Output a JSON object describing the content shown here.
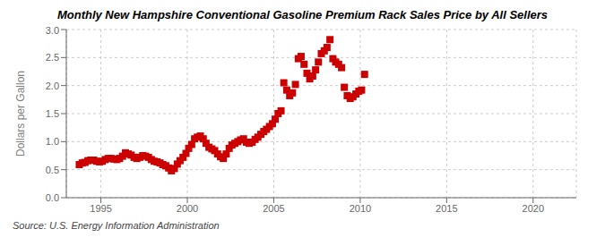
{
  "chart_data": {
    "type": "scatter",
    "title": "Monthly New Hampshire Conventional Gasoline Premium Rack Sales Price by All Sellers",
    "ylabel": "Dollars per Gallon",
    "annotations": [
      "Source: U.S. Energy Information Administration"
    ],
    "color": "#cc0000",
    "marker": "square",
    "grid": true,
    "xlim": [
      1993.0,
      2022.5
    ],
    "ylim": [
      0.0,
      3.0
    ],
    "xticks": [
      1995,
      2000,
      2005,
      2010,
      2015,
      2020
    ],
    "yticks": [
      {
        "value": 0.0,
        "label": "0.0"
      },
      0.5,
      {
        "value": 1.0,
        "label": "1.0"
      },
      1.5,
      {
        "value": 2.0,
        "label": "2.0"
      },
      2.5,
      {
        "value": 3.0,
        "label": "3.0"
      }
    ],
    "x": [
      1993.75,
      1993.92,
      1994.08,
      1994.25,
      1994.42,
      1994.58,
      1994.75,
      1994.92,
      1995.08,
      1995.25,
      1995.42,
      1995.58,
      1995.75,
      1995.92,
      1996.08,
      1996.25,
      1996.42,
      1996.58,
      1996.75,
      1996.92,
      1997.08,
      1997.25,
      1997.42,
      1997.58,
      1997.75,
      1997.92,
      1998.08,
      1998.25,
      1998.42,
      1998.58,
      1998.75,
      1998.92,
      1999.08,
      1999.25,
      1999.42,
      1999.58,
      1999.75,
      1999.92,
      2000.08,
      2000.25,
      2000.42,
      2000.58,
      2000.75,
      2000.92,
      2001.08,
      2001.25,
      2001.42,
      2001.58,
      2001.75,
      2001.92,
      2002.08,
      2002.25,
      2002.42,
      2002.58,
      2002.75,
      2002.92,
      2003.08,
      2003.25,
      2003.42,
      2003.58,
      2003.75,
      2003.92,
      2004.08,
      2004.25,
      2004.42,
      2004.58,
      2004.75,
      2004.92,
      2005.08,
      2005.25,
      2005.42,
      2005.58,
      2005.75,
      2005.92,
      2006.08,
      2006.25,
      2006.42,
      2006.58,
      2006.75,
      2006.92,
      2007.08,
      2007.25,
      2007.42,
      2007.58,
      2007.75,
      2007.92,
      2008.08,
      2008.25,
      2008.42,
      2008.58,
      2008.75,
      2008.92,
      2009.08,
      2009.25,
      2009.42,
      2009.58,
      2009.75,
      2009.92,
      2010.08,
      2010.25
    ],
    "values": [
      0.59,
      0.62,
      0.63,
      0.66,
      0.67,
      0.67,
      0.65,
      0.64,
      0.65,
      0.68,
      0.7,
      0.7,
      0.69,
      0.68,
      0.7,
      0.74,
      0.8,
      0.78,
      0.76,
      0.72,
      0.7,
      0.72,
      0.75,
      0.74,
      0.72,
      0.68,
      0.65,
      0.64,
      0.62,
      0.59,
      0.57,
      0.53,
      0.48,
      0.52,
      0.6,
      0.66,
      0.72,
      0.79,
      0.88,
      0.95,
      1.05,
      1.08,
      1.1,
      1.05,
      0.97,
      0.9,
      0.87,
      0.84,
      0.78,
      0.73,
      0.7,
      0.78,
      0.88,
      0.94,
      0.97,
      1.0,
      1.03,
      1.05,
      0.99,
      0.97,
      0.99,
      1.04,
      1.08,
      1.13,
      1.18,
      1.22,
      1.27,
      1.32,
      1.4,
      1.5,
      1.55,
      2.05,
      1.92,
      1.82,
      1.87,
      2.02,
      2.48,
      2.52,
      2.38,
      2.22,
      2.12,
      2.17,
      2.28,
      2.42,
      2.57,
      2.62,
      2.68,
      2.82,
      2.48,
      2.42,
      2.38,
      2.32,
      1.97,
      1.82,
      1.77,
      1.8,
      1.85,
      1.9,
      1.92,
      2.2
    ]
  }
}
